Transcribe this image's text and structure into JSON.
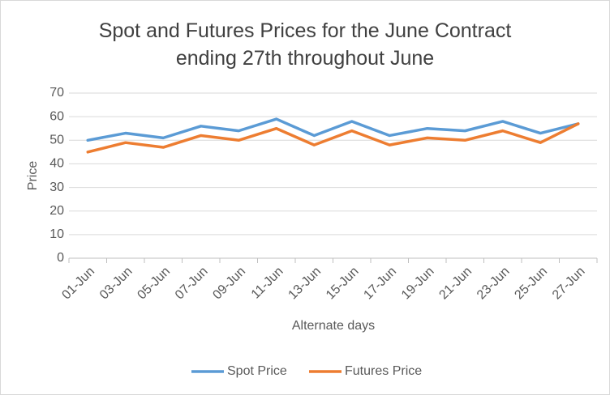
{
  "chart_data": {
    "type": "line",
    "title": "Spot and Futures Prices for the June Contract ending 27th throughout June",
    "x_label": "Alternate days",
    "y_label": "Price",
    "categories": [
      "01-Jun",
      "03-Jun",
      "05-Jun",
      "07-Jun",
      "09-Jun",
      "11-Jun",
      "13-Jun",
      "15-Jun",
      "17-Jun",
      "19-Jun",
      "21-Jun",
      "23-Jun",
      "25-Jun",
      "27-Jun"
    ],
    "series": [
      {
        "name": "Spot Price",
        "color": "#5b9bd5",
        "values": [
          50,
          53,
          51,
          56,
          54,
          59,
          52,
          58,
          52,
          55,
          54,
          58,
          53,
          57
        ]
      },
      {
        "name": "Futures Price",
        "color": "#ed7d31",
        "values": [
          45,
          49,
          47,
          52,
          50,
          55,
          48,
          54,
          48,
          51,
          50,
          54,
          49,
          57
        ]
      }
    ],
    "ylim": [
      0,
      70
    ],
    "yticks": [
      0,
      10,
      20,
      30,
      40,
      50,
      60,
      70
    ],
    "grid": true
  }
}
